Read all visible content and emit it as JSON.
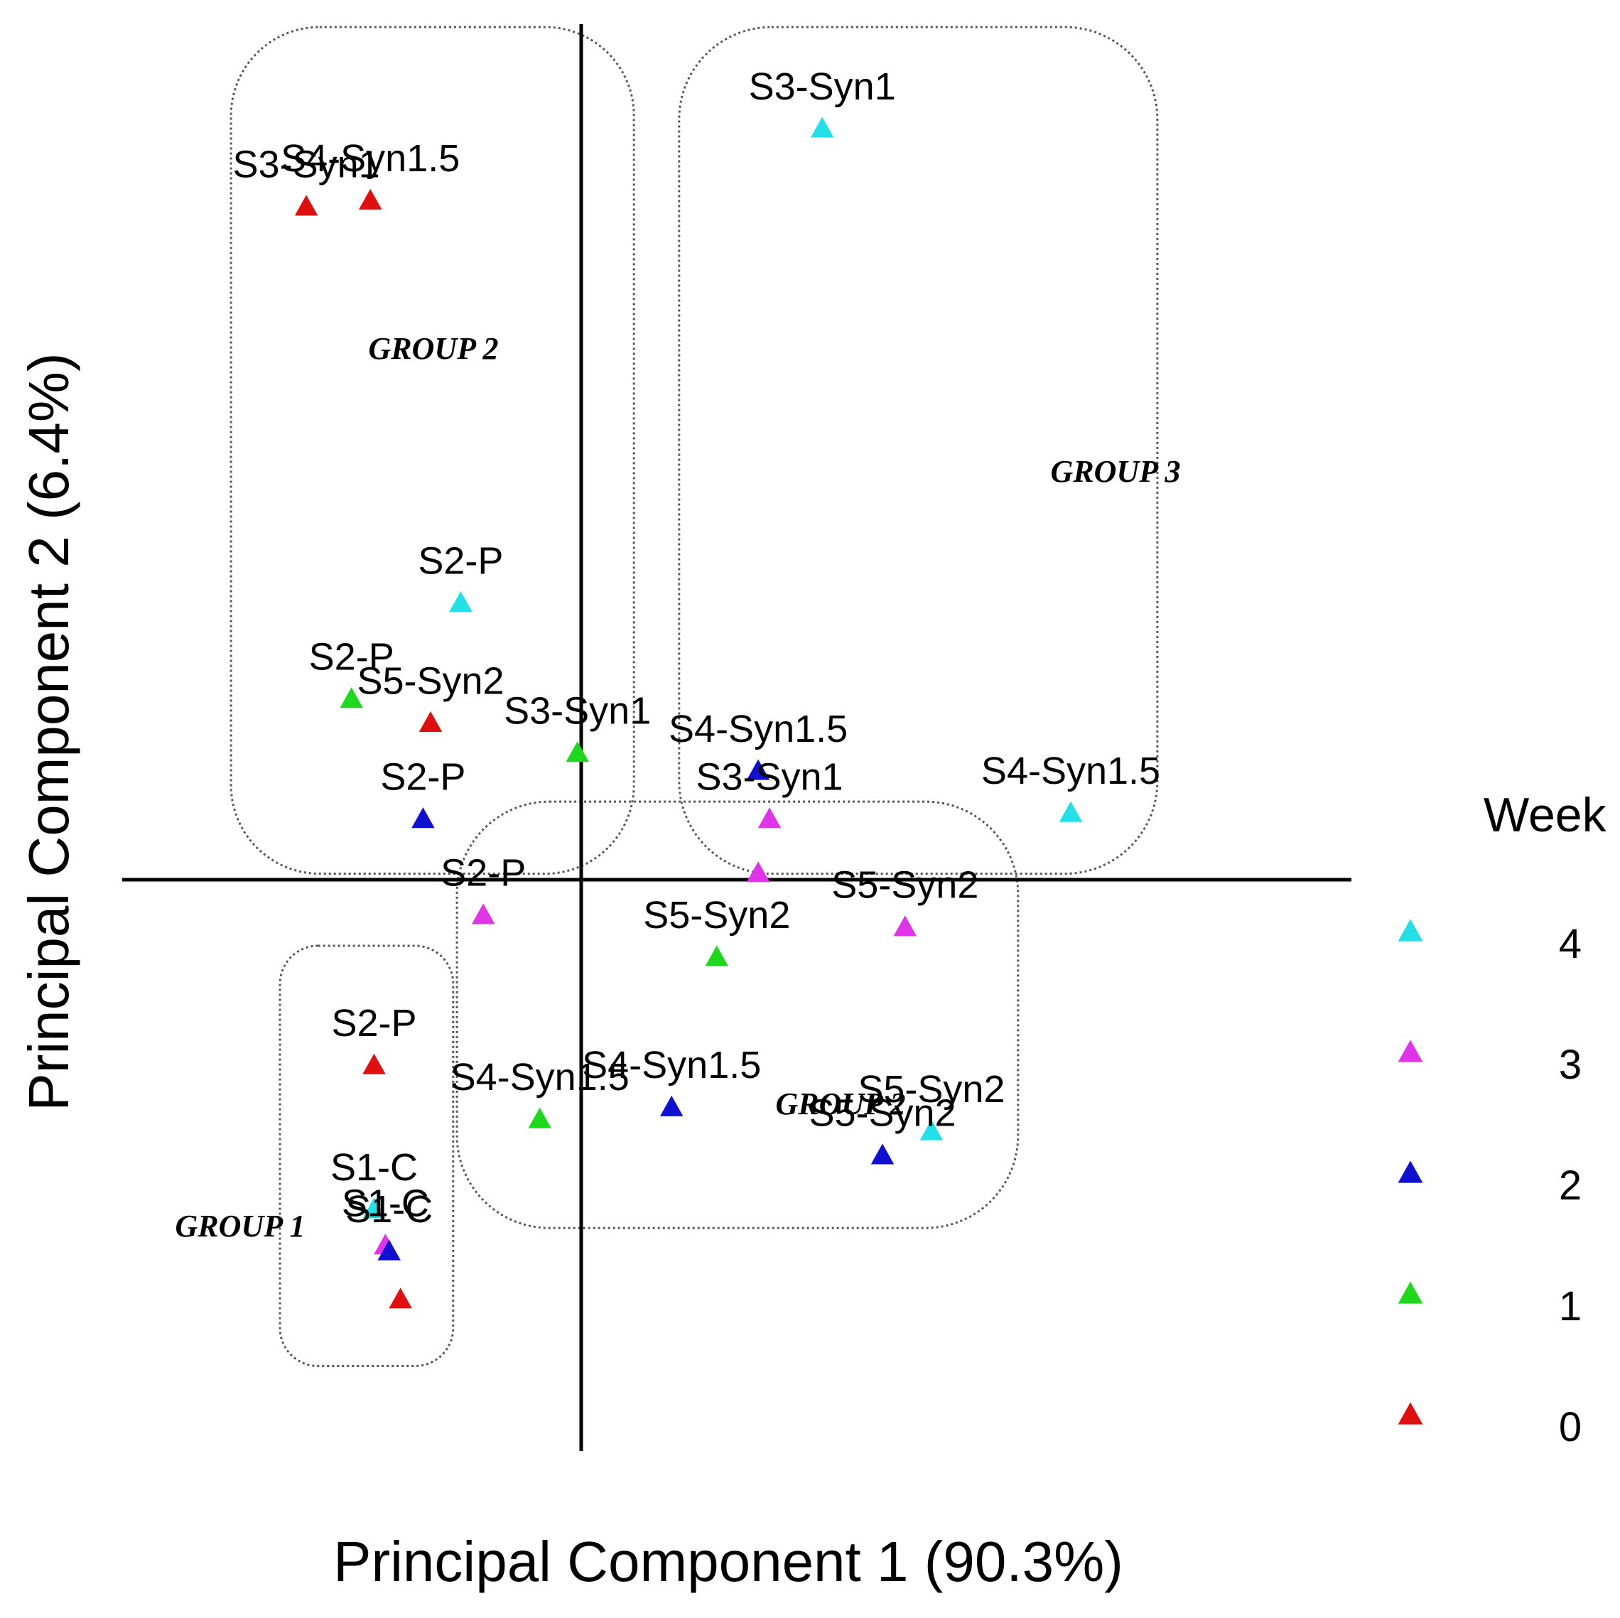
{
  "chart_data": {
    "type": "scatter",
    "title": "",
    "xlabel": "Principal Component 1 (90.3%)",
    "ylabel": "Principal Component 2 (6.4%)",
    "xlim": [
      -10,
      14
    ],
    "ylim": [
      -11,
      16
    ],
    "grid": false,
    "axes_through_origin": true,
    "legend": {
      "title": "Week",
      "position": "right",
      "entries": [
        {
          "label": "4",
          "color": "#22e0e8"
        },
        {
          "label": "3",
          "color": "#e034e8"
        },
        {
          "label": "2",
          "color": "#1010d0"
        },
        {
          "label": "1",
          "color": "#1ed81e"
        },
        {
          "label": "0",
          "color": "#e01010"
        }
      ]
    },
    "groups": [
      {
        "label": "GROUP 2",
        "x_range": [
          -9.3,
          1.4
        ],
        "y_range": [
          0.1,
          14.2
        ]
      },
      {
        "label": "GROUP 3",
        "x_range": [
          2.6,
          15.3
        ],
        "y_range": [
          0.1,
          14.2
        ]
      },
      {
        "label": "GROUP 2",
        "x_range": [
          -3.3,
          11.6
        ],
        "y_range": [
          -5.8,
          1.3
        ]
      },
      {
        "label": "GROUP 1",
        "x_range": [
          -8.0,
          -3.4
        ],
        "y_range": [
          -8.1,
          -1.1
        ]
      }
    ],
    "series": [
      {
        "name": "4",
        "color": "#22e0e8",
        "points": [
          {
            "x": 6.4,
            "y": 12.5,
            "label": "S3-Syn1"
          },
          {
            "x": -3.2,
            "y": 4.6,
            "label": "S2-P"
          },
          {
            "x": 13.0,
            "y": 1.1,
            "label": "S4-Syn1.5"
          },
          {
            "x": 9.3,
            "y": -4.2,
            "label": "S5-Syn2"
          },
          {
            "x": -5.5,
            "y": -5.5,
            "label": "S1-C"
          }
        ]
      },
      {
        "name": "3",
        "color": "#e034e8",
        "points": [
          {
            "x": 5.0,
            "y": 1.0,
            "label": "S3-Syn1"
          },
          {
            "x": 4.7,
            "y": 0.1,
            "label": ""
          },
          {
            "x": -2.6,
            "y": -0.6,
            "label": "S2-P"
          },
          {
            "x": 8.6,
            "y": -0.8,
            "label": "S5-Syn2"
          },
          {
            "x": -5.2,
            "y": -6.1,
            "label": "S1-C"
          }
        ]
      },
      {
        "name": "2",
        "color": "#1010d0",
        "points": [
          {
            "x": 4.7,
            "y": 1.8,
            "label": "S4-Syn1.5"
          },
          {
            "x": -4.2,
            "y": 1.0,
            "label": "S2-P"
          },
          {
            "x": 2.4,
            "y": -3.8,
            "label": "S4-Syn1.5"
          },
          {
            "x": 8.0,
            "y": -4.6,
            "label": "S5-Syn2"
          },
          {
            "x": -5.1,
            "y": -6.2,
            "label": "S1-C"
          }
        ]
      },
      {
        "name": "1",
        "color": "#1ed81e",
        "points": [
          {
            "x": -6.1,
            "y": 3.0,
            "label": "S2-P"
          },
          {
            "x": -0.1,
            "y": 2.1,
            "label": "S3-Syn1"
          },
          {
            "x": 3.6,
            "y": -1.3,
            "label": "S5-Syn2"
          },
          {
            "x": -1.1,
            "y": -4.0,
            "label": "S4-Syn1.5"
          }
        ]
      },
      {
        "name": "0",
        "color": "#e01010",
        "points": [
          {
            "x": -7.3,
            "y": 11.2,
            "label": "S3-Syn1"
          },
          {
            "x": -5.6,
            "y": 11.3,
            "label": "S4-Syn1.5"
          },
          {
            "x": -4.0,
            "y": 2.6,
            "label": "S5-Syn2"
          },
          {
            "x": -5.5,
            "y": -3.1,
            "label": "S2-P"
          },
          {
            "x": -4.8,
            "y": -7.0,
            "label": ""
          }
        ]
      }
    ]
  }
}
